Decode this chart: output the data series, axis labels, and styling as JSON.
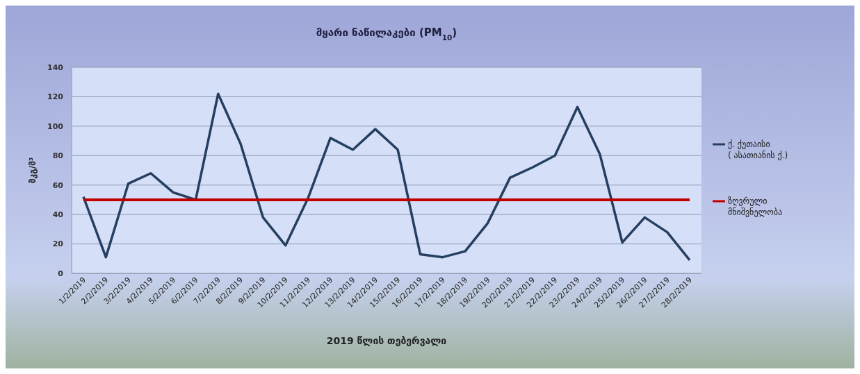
{
  "chart_data": {
    "type": "line",
    "title": "მყარი ნაწილაკები (PM$_{10}$)",
    "xlabel": "2019 წლის თებერვალი",
    "ylabel": "მკგ/მ³",
    "categories": [
      "1/2/2019",
      "2/2/2019",
      "3/2/2019",
      "4/2/2019",
      "5/2/2019",
      "6/2/2019",
      "7/2/2019",
      "8/2/2019",
      "9/2/2019",
      "10/2/2019",
      "11/2/2019",
      "12/2/2019",
      "13/2/2019",
      "14/2/2019",
      "15/2/2019",
      "16/2/2019",
      "17/2/2019",
      "18/2/2019",
      "19/2/2019",
      "20/2/2019",
      "21/2/2019",
      "22/2/2019",
      "23/2/2019",
      "24/2/2019",
      "25/2/2019",
      "26/2/2019",
      "27/2/2019",
      "28/2/2019"
    ],
    "series": [
      {
        "name": "ქ. ქუთაისი ( ასათიანის ქ.)",
        "color": "#243f60",
        "values": [
          52,
          11,
          61,
          68,
          55,
          50,
          122,
          88,
          38,
          19,
          51,
          92,
          84,
          98,
          84,
          13,
          11,
          15,
          34,
          65,
          72,
          80,
          113,
          81,
          21,
          38,
          28,
          9
        ]
      },
      {
        "name": "ზღვრული მნიშვნელობა",
        "color": "#c00000",
        "values": [
          50,
          50,
          50,
          50,
          50,
          50,
          50,
          50,
          50,
          50,
          50,
          50,
          50,
          50,
          50,
          50,
          50,
          50,
          50,
          50,
          50,
          50,
          50,
          50,
          50,
          50,
          50,
          50
        ]
      }
    ],
    "ylim": [
      0,
      140
    ],
    "yticks": [
      0,
      20,
      40,
      60,
      80,
      100,
      120,
      140
    ],
    "grid": "y",
    "legend": "right",
    "marker": "none",
    "line_style": "solid"
  }
}
